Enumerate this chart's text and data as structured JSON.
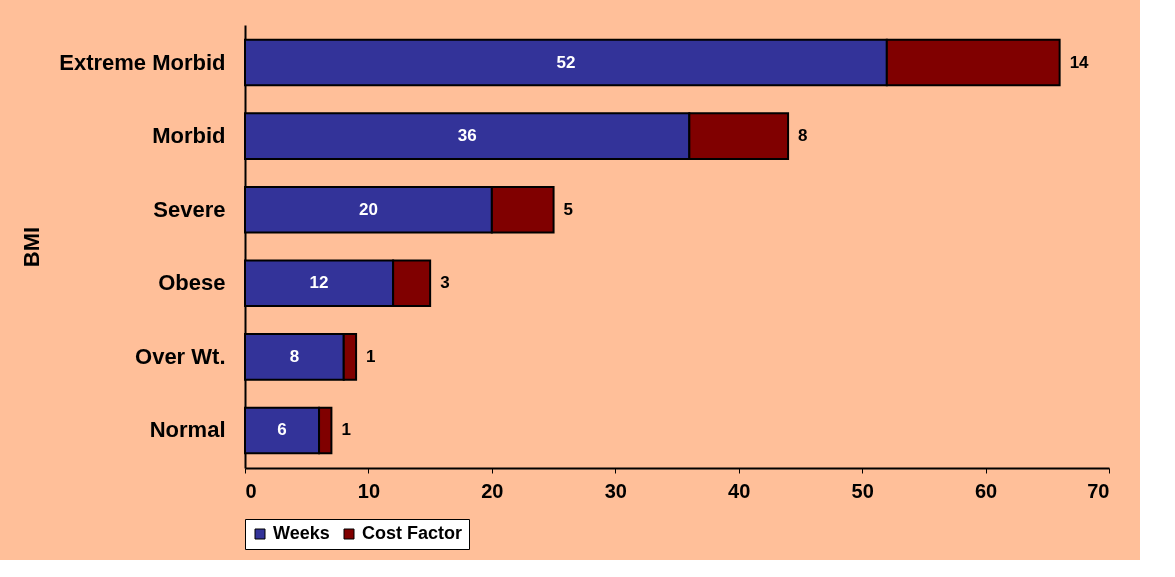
{
  "chart_data": {
    "type": "bar",
    "orientation": "horizontal",
    "stacked": true,
    "ylabel": "BMI",
    "categories": [
      "Extreme Morbid",
      "Morbid",
      "Severe",
      "Obese",
      "Over Wt.",
      "Normal"
    ],
    "series": [
      {
        "name": "Weeks",
        "color": "#333399",
        "values": [
          52,
          36,
          20,
          12,
          8,
          6
        ]
      },
      {
        "name": "Cost Factor",
        "color": "#800000",
        "values": [
          14,
          8,
          5,
          3,
          1,
          1
        ]
      }
    ],
    "xlim": [
      0,
      70
    ],
    "xticks": [
      0,
      10,
      20,
      30,
      40,
      50,
      60,
      70
    ],
    "grid": false,
    "legend": "bottom",
    "data_labels": true
  }
}
